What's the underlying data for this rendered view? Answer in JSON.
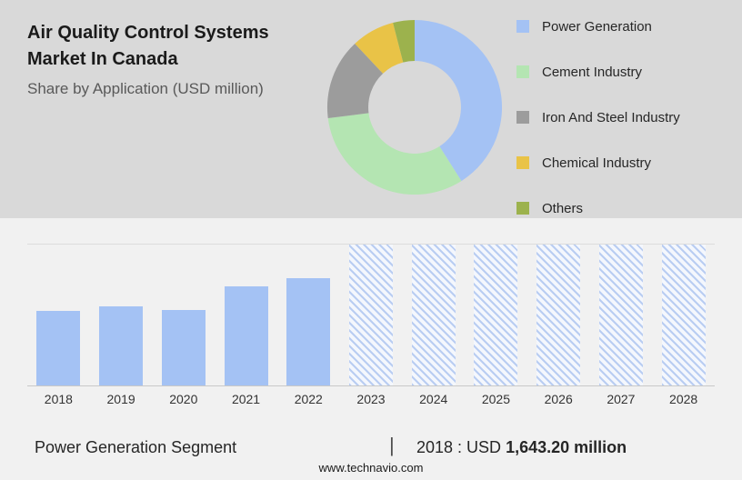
{
  "header": {
    "title_line1": "Air Quality Control Systems",
    "title_line2": "Market In Canada",
    "subtitle": "Share by Application (USD million)"
  },
  "colors": {
    "top_panel_bg": "#d9d9d9",
    "bottom_panel_bg": "#f1f1f1",
    "bar_blue": "#a4c2f4",
    "forecast_hatch": "#b9cdf2"
  },
  "chart_data": [
    {
      "type": "pie",
      "donut": true,
      "title": "Share by Application (USD million)",
      "labels": [
        "Power Generation",
        "Cement Industry",
        "Iron And Steel Industry",
        "Chemical Industry",
        "Others"
      ],
      "values": [
        41,
        32,
        15,
        8,
        4
      ],
      "colors": [
        "#a4c2f4",
        "#b4e5b2",
        "#9c9c9c",
        "#e9c347",
        "#9cb24d"
      ],
      "legend_position": "right"
    },
    {
      "type": "bar",
      "title": "Market size by year (USD million)",
      "categories": [
        "2018",
        "2019",
        "2020",
        "2021",
        "2022",
        "2023",
        "2024",
        "2025",
        "2026",
        "2027",
        "2028"
      ],
      "values": [
        1643.2,
        1740,
        1660,
        2180,
        2370,
        null,
        null,
        null,
        null,
        null,
        null
      ],
      "forecast_years": [
        "2023",
        "2024",
        "2025",
        "2026",
        "2027",
        "2028"
      ],
      "forecast_hatched": true,
      "xlabel": "",
      "ylabel": "",
      "ylim": [
        0,
        3100
      ],
      "grid": false,
      "bar_color": "#a4c2f4"
    }
  ],
  "footer": {
    "segment_label": "Power Generation Segment",
    "separator": "|",
    "year_stub": "2018 : USD",
    "value_bold": "1,643.20 million",
    "website": "www.technavio.com"
  }
}
